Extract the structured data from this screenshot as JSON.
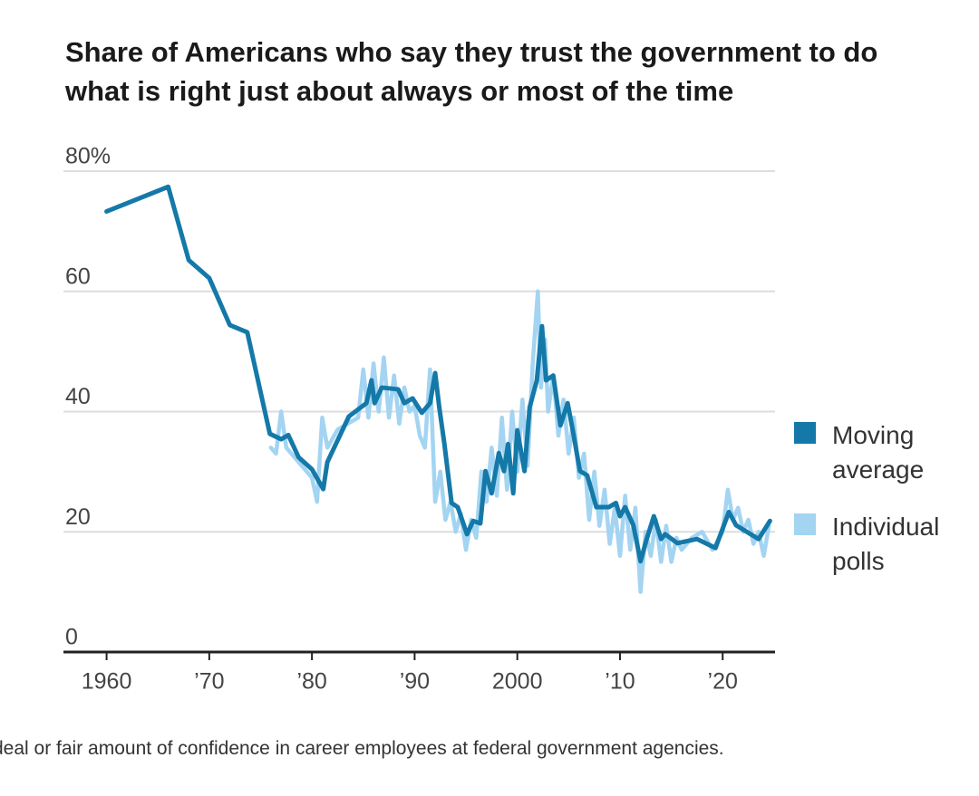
{
  "chart_data": {
    "type": "line",
    "title": "Share of Americans who say they trust the government to do what is right just about always or most of the time",
    "note": "deal or fair amount of confidence in career employees at federal government agencies.",
    "xlim": [
      1955.8,
      2025.1
    ],
    "xticks": [
      {
        "value": 1960,
        "label": "1960"
      },
      {
        "value": 1970,
        "label": "’70"
      },
      {
        "value": 1980,
        "label": "’80"
      },
      {
        "value": 1990,
        "label": "’90"
      },
      {
        "value": 2000,
        "label": "2000"
      },
      {
        "value": 2010,
        "label": "’10"
      },
      {
        "value": 2020,
        "label": "’20"
      }
    ],
    "ylim": [
      0,
      80
    ],
    "yticks": [
      0,
      20,
      40,
      60,
      {
        "value": 80,
        "label": "80%"
      }
    ],
    "grid": true,
    "legend": "right",
    "series": [
      {
        "name": "Individual polls",
        "color": "#a3d4f2",
        "x": [
          1976,
          1976.5,
          1977,
          1977.5,
          1978.5,
          1980,
          1980.5,
          1981,
          1981.5,
          1982.5,
          1983.5,
          1984.5,
          1985,
          1985.5,
          1986,
          1986.5,
          1987,
          1987.5,
          1988,
          1988.5,
          1989,
          1989.5,
          1990,
          1990.5,
          1991,
          1991.5,
          1992,
          1992.5,
          1993,
          1993.5,
          1994,
          1994.5,
          1995,
          1995.5,
          1996,
          1996.5,
          1997,
          1997.5,
          1998,
          1998.5,
          1999,
          1999.5,
          2000,
          2000.5,
          2001,
          2001.5,
          2002,
          2002.3,
          2002.7,
          2003,
          2003.5,
          2004,
          2004.5,
          2005,
          2005.5,
          2006,
          2006.5,
          2007,
          2007.5,
          2008,
          2008.5,
          2009,
          2009.5,
          2010,
          2010.5,
          2011,
          2011.5,
          2012,
          2012.5,
          2013,
          2013.5,
          2014,
          2014.5,
          2015,
          2015.5,
          2016,
          2017,
          2018,
          2019,
          2020,
          2020.5,
          2021,
          2021.5,
          2022,
          2022.5,
          2023,
          2023.5,
          2024,
          2024.5
        ],
        "values": [
          34,
          33,
          40,
          34,
          32,
          29,
          25,
          39,
          34,
          37,
          38,
          39,
          47,
          39,
          48,
          40,
          49,
          39,
          46,
          38,
          44,
          40,
          41,
          36,
          34,
          47,
          25,
          30,
          22,
          25,
          20,
          23,
          17,
          22,
          19,
          30,
          25,
          34,
          26,
          39,
          27,
          40,
          30,
          42,
          31,
          48,
          60,
          44,
          52,
          40,
          46,
          36,
          42,
          33,
          39,
          29,
          33,
          22,
          30,
          21,
          27,
          18,
          24,
          16,
          26,
          17,
          24,
          10,
          20,
          16,
          22,
          15,
          21,
          15,
          19,
          17,
          19,
          20,
          17,
          20,
          27,
          22,
          24,
          20,
          22,
          18,
          20,
          16,
          21
        ]
      },
      {
        "name": "Moving average",
        "color": "#1479a8",
        "x": [
          1960,
          1966,
          1968,
          1970,
          1972,
          1973.7,
          1975.9,
          1977,
          1977.7,
          1978.7,
          1980,
          1981.1,
          1981.5,
          1983.6,
          1985.3,
          1985.8,
          1986.1,
          1986.8,
          1988.4,
          1989,
          1989.8,
          1990.7,
          1991.5,
          1992,
          1992.4,
          1992.9,
          1993.6,
          1994.2,
          1995.1,
          1995.7,
          1996.4,
          1996.9,
          1997.5,
          1998.2,
          1998.7,
          1999.1,
          1999.6,
          2000,
          2000.7,
          2001.2,
          2001.9,
          2002.4,
          2002.8,
          2003.5,
          2004.2,
          2004.9,
          2005.4,
          2006.1,
          2006.8,
          2007.7,
          2008.9,
          2009.6,
          2010,
          2010.5,
          2011.3,
          2012,
          2012.6,
          2013.3,
          2014,
          2014.4,
          2015.6,
          2017.5,
          2019.3,
          2020.6,
          2021.3,
          2023.5,
          2024.6
        ],
        "values": [
          73.3,
          77.4,
          65.2,
          62.2,
          54.4,
          53.2,
          36.3,
          35.4,
          36.1,
          32.4,
          30.4,
          27.1,
          31.6,
          39.2,
          41.4,
          45.2,
          41.4,
          44,
          43.7,
          41.4,
          42.2,
          39.8,
          41.4,
          46.4,
          40.7,
          34.6,
          24.8,
          24.1,
          19.6,
          21.8,
          21.4,
          30.1,
          26.4,
          33.1,
          30.1,
          34.6,
          26.4,
          36.9,
          30.1,
          40.7,
          45.2,
          54.2,
          45.2,
          46,
          37.7,
          41.4,
          36.9,
          30.1,
          29.4,
          24.1,
          24.1,
          24.8,
          22.6,
          24.1,
          21.1,
          15.1,
          18.8,
          22.6,
          18.8,
          19.6,
          18.1,
          18.8,
          17.3,
          23.3,
          21.1,
          18.8,
          21.8
        ]
      }
    ]
  }
}
